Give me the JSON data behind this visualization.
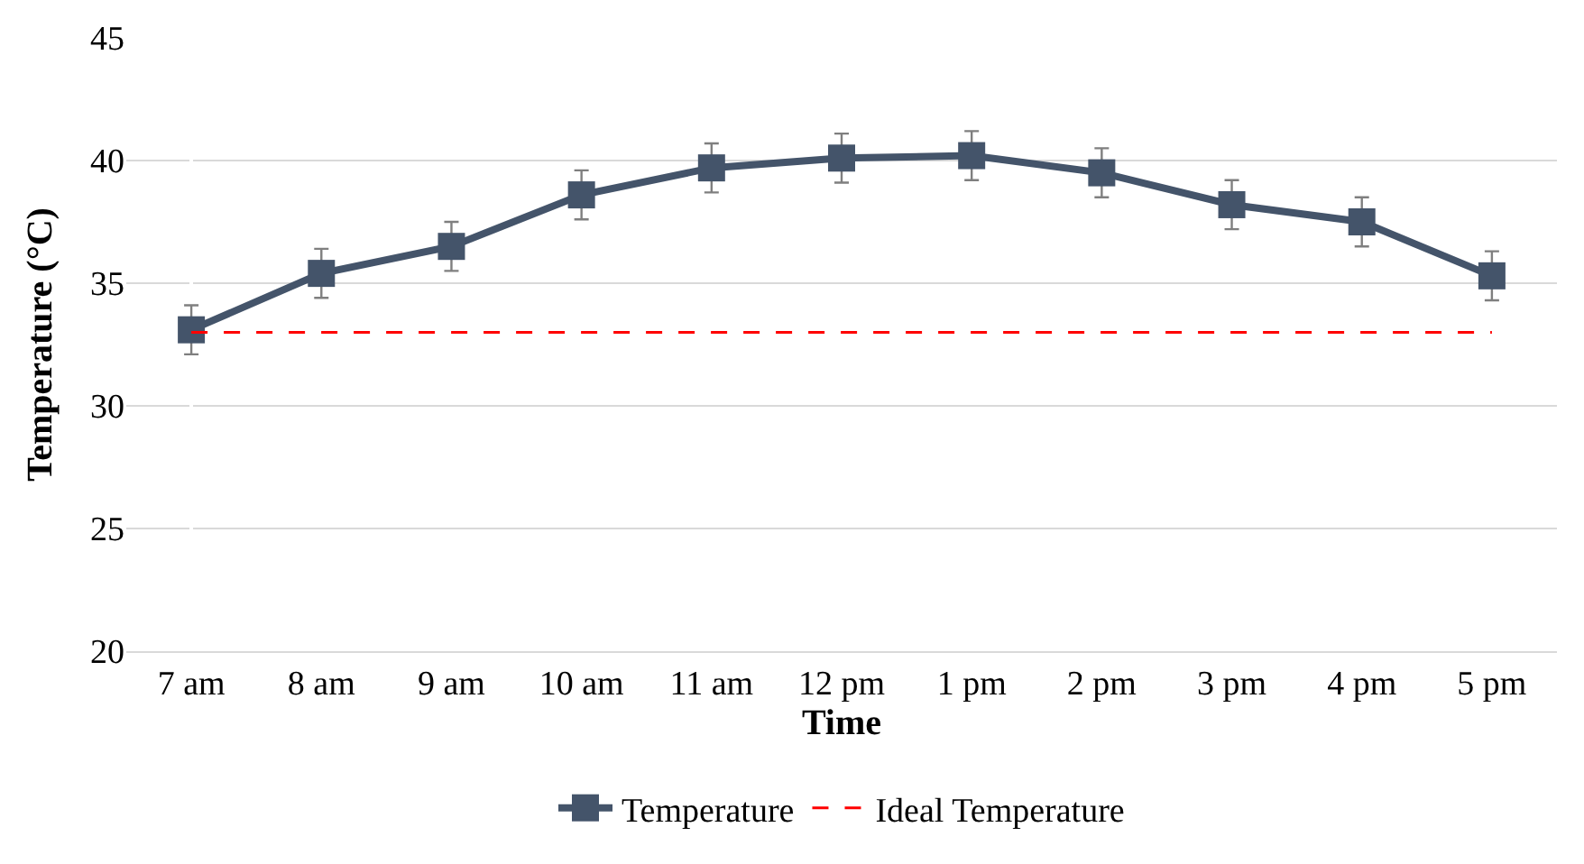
{
  "chart_data": {
    "type": "line",
    "xlabel": "Time",
    "ylabel": "Temperature (°C)",
    "categories": [
      "7 am",
      "8 am",
      "9 am",
      "10 am",
      "11 am",
      "12 pm",
      "1 pm",
      "2 pm",
      "3 pm",
      "4 pm",
      "5 pm"
    ],
    "series": [
      {
        "name": "Temperature",
        "color": "#44546a",
        "values": [
          33.1,
          35.4,
          36.5,
          38.6,
          39.7,
          40.1,
          40.2,
          39.5,
          38.2,
          37.5,
          35.3
        ],
        "errors": [
          1,
          1,
          1,
          1,
          1,
          1,
          1,
          1,
          1,
          1,
          1
        ],
        "marker": "square",
        "line_style": "solid"
      },
      {
        "name": "Ideal Temperature",
        "color": "#ff0000",
        "values": [
          33,
          33,
          33,
          33,
          33,
          33,
          33,
          33,
          33,
          33,
          33
        ],
        "marker": "none",
        "line_style": "dashed"
      }
    ],
    "ylim": [
      20,
      45
    ],
    "yticks": [
      20,
      25,
      30,
      35,
      40,
      45
    ],
    "grid": "y",
    "legend": "bottom"
  }
}
